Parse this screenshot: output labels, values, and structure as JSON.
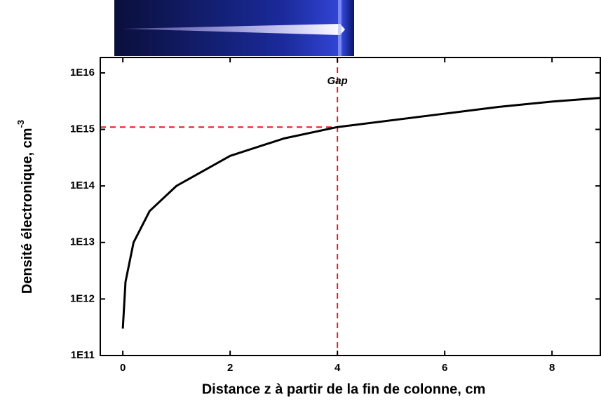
{
  "chart_data": {
    "type": "line",
    "x_label": "Distance z à partir de la fin de colonne, cm",
    "y_label": "Densité électronique, cm",
    "y_label_superscript": "-3",
    "annotation": "Gap",
    "x": [
      0,
      0.05,
      0.2,
      0.5,
      1,
      2,
      3,
      4,
      6,
      7,
      8,
      8.9
    ],
    "values": [
      300000000000.0,
      2000000000000.0,
      10000000000000.0,
      36000000000000.0,
      100000000000000.0,
      340000000000000.0,
      690000000000000.0,
      1100000000000000.0,
      1900000000000000.0,
      2500000000000000.0,
      3100000000000000.0,
      3600000000000000.0
    ],
    "color": "#000000",
    "reference_lines": {
      "x": 4,
      "y": 1100000000000000.0,
      "color": "#e41a1c"
    },
    "xlim": [
      -0.42,
      8.9
    ],
    "xticks": [
      0,
      2,
      4,
      6,
      8
    ],
    "ylim": [
      100000000000.0,
      1.87e+16
    ],
    "log_y": true,
    "yticks": [
      {
        "value": 100000000000.0,
        "label": "1E11"
      },
      {
        "value": 1000000000000.0,
        "label": "1E12"
      },
      {
        "value": 10000000000000.0,
        "label": "1E13"
      },
      {
        "value": 100000000000000.0,
        "label": "1E14"
      },
      {
        "value": 1000000000000000.0,
        "label": "1E15"
      },
      {
        "value": 1e+16,
        "label": "1E16"
      }
    ]
  }
}
